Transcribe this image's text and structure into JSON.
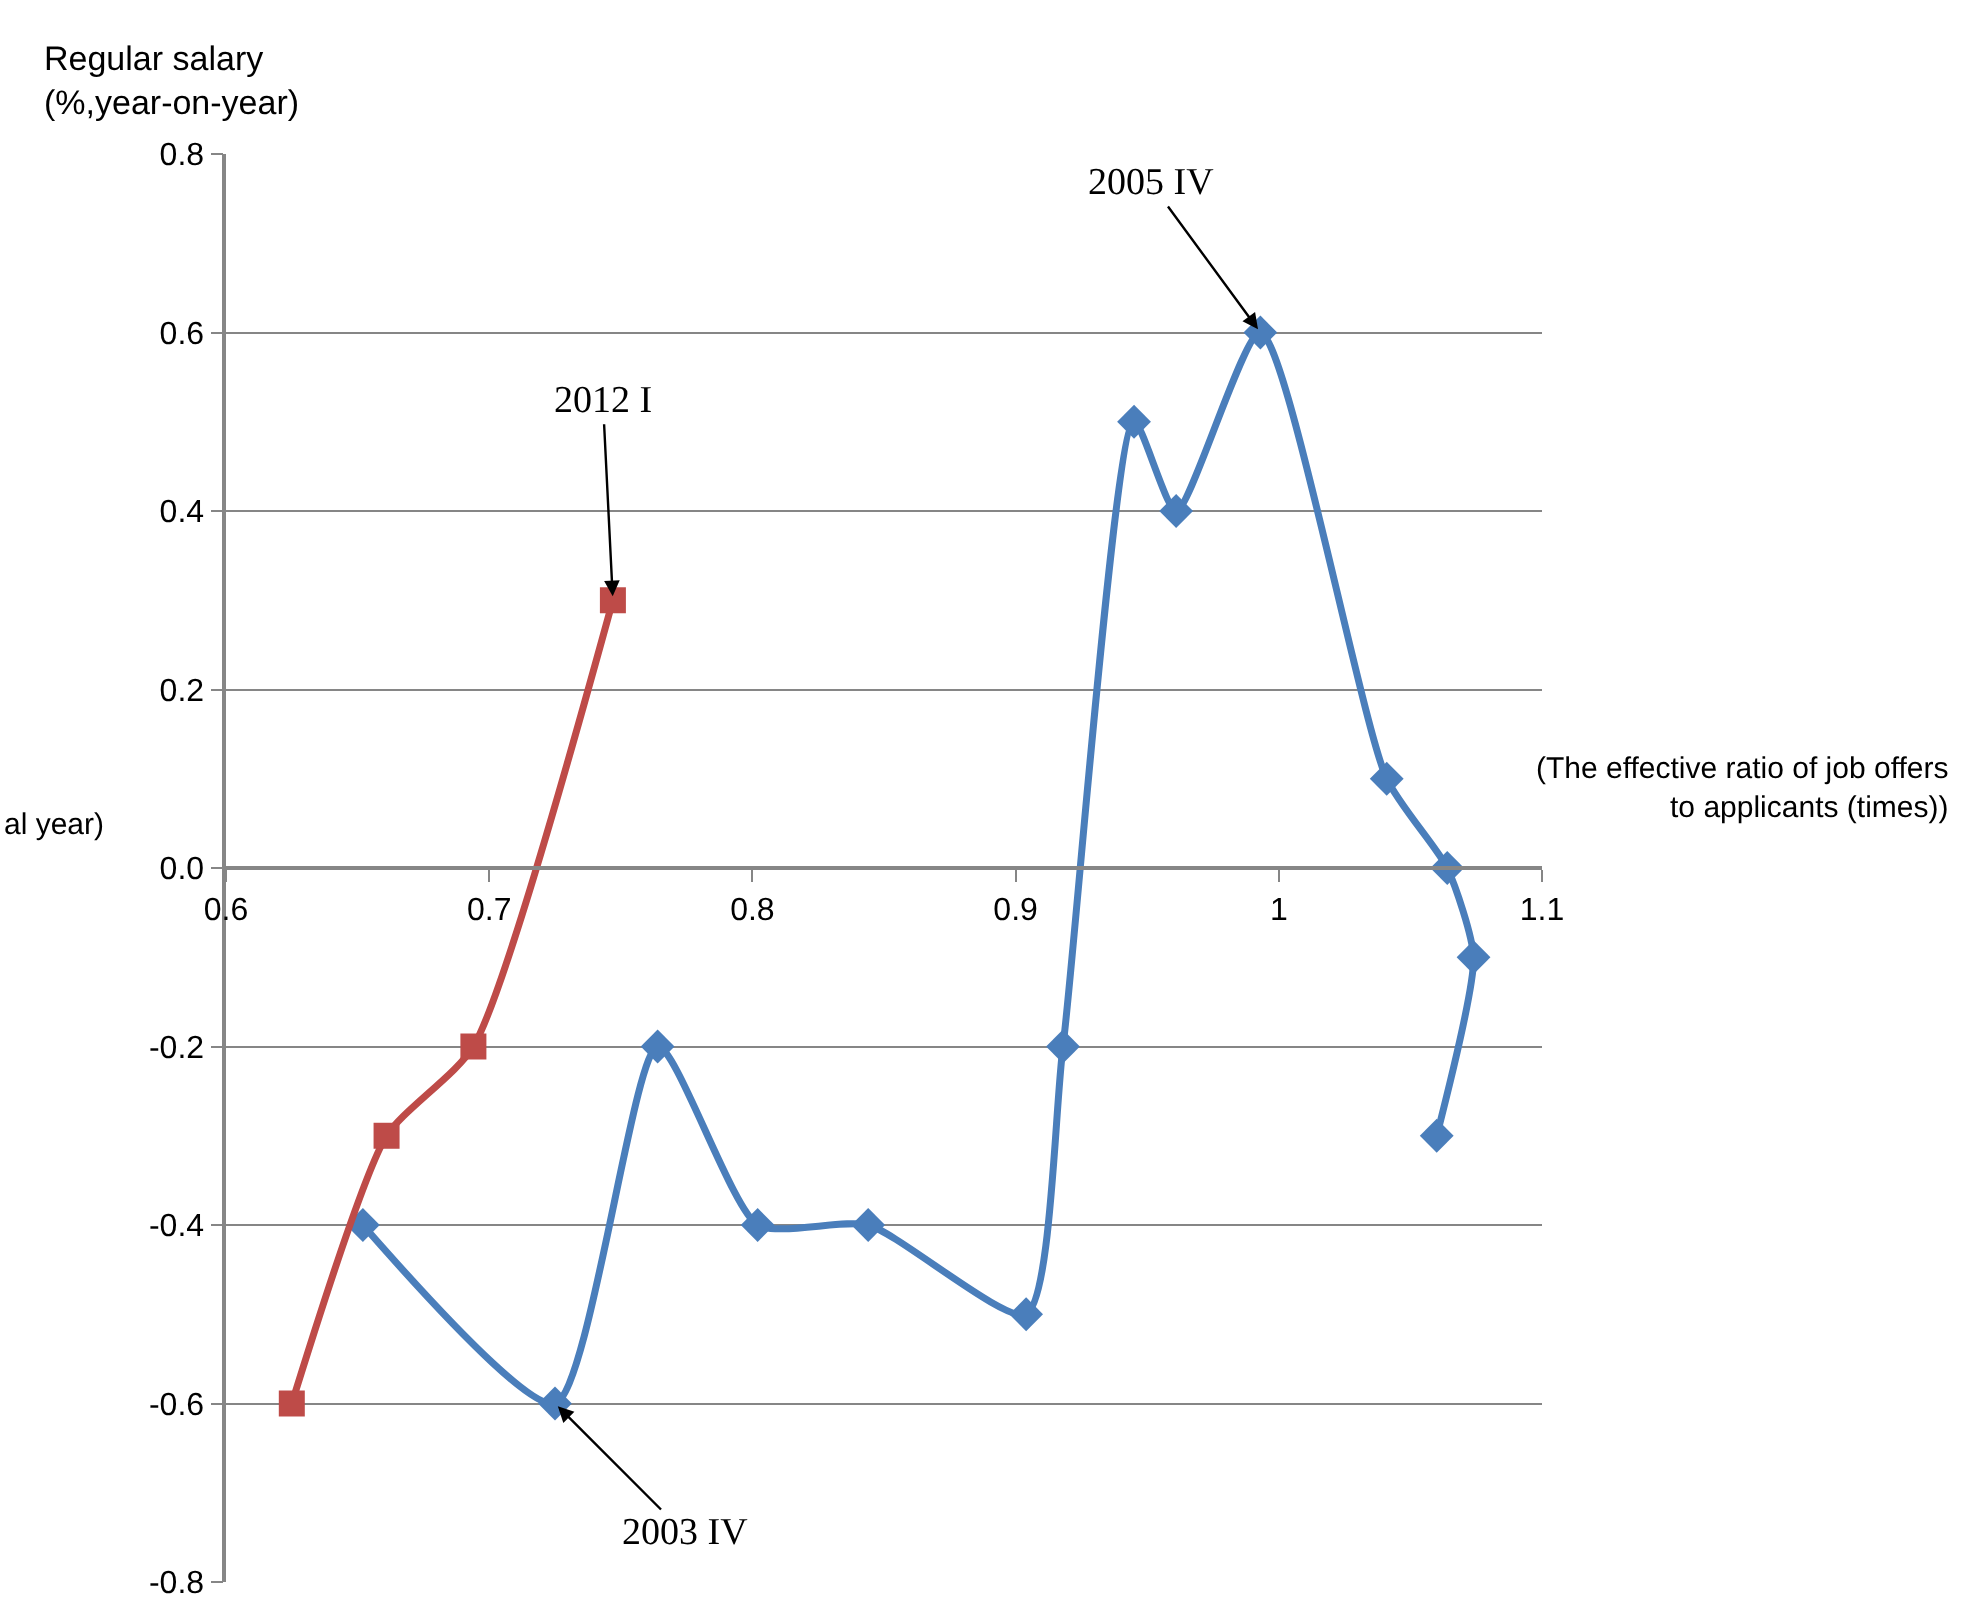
{
  "chart_data": {
    "type": "line",
    "xlabel": "(The effective ratio of job offers\nto applicants (times))",
    "ylabel": "Regular salary\n(%,year-on-year)",
    "series": [
      {
        "color": "#4a7ebb",
        "marker": "diamond",
        "x": [
          0.652,
          0.725,
          0.764,
          0.802,
          0.844,
          0.904,
          0.918,
          0.945,
          0.961,
          0.993,
          1.041,
          1.064,
          1.074,
          1.06
        ],
        "values": [
          -0.4,
          -0.6,
          -0.2,
          -0.4,
          -0.4,
          -0.5,
          -0.2,
          0.5,
          0.4,
          0.6,
          0.1,
          0.0,
          -0.1,
          -0.3
        ]
      },
      {
        "color": "#be4b48",
        "marker": "square",
        "x": [
          0.625,
          0.661,
          0.694,
          0.747
        ],
        "values": [
          -0.6,
          -0.3,
          -0.2,
          0.3
        ]
      }
    ],
    "annotations": [
      {
        "text": "2012 I",
        "x": 0.747,
        "y": 0.3
      },
      {
        "text": "2005 IV",
        "x": 0.993,
        "y": 0.6
      },
      {
        "text": "2003 IV",
        "x": 0.725,
        "y": -0.6
      },
      "al year)"
    ],
    "xlim": [
      0.6,
      1.1
    ],
    "xticks": [
      0.6,
      0.7,
      0.8,
      0.9,
      1,
      1.1
    ],
    "ylim": [
      -0.8,
      0.8
    ],
    "yticks": [
      -0.8,
      -0.6,
      -0.4,
      -0.2,
      {
        "value": 0,
        "label": "0.0"
      },
      0.2,
      0.4,
      0.6,
      0.8
    ],
    "grid": "y",
    "legend": false,
    "line_style": "solid"
  }
}
